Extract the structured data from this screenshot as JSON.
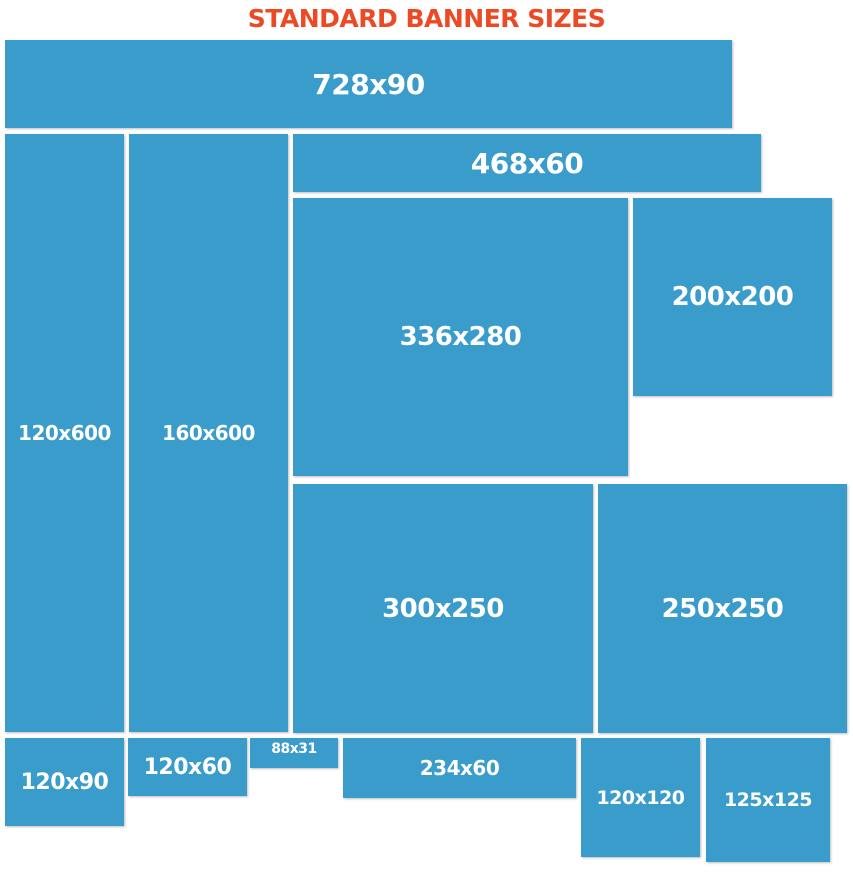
{
  "title": "STANDARD BANNER SIZES",
  "banners": [
    {
      "label": "728x90"
    },
    {
      "label": "468x60"
    },
    {
      "label": "120x600"
    },
    {
      "label": "160x600"
    },
    {
      "label": "336x280"
    },
    {
      "label": "200x200"
    },
    {
      "label": "300x250"
    },
    {
      "label": "250x250"
    },
    {
      "label": "120x90"
    },
    {
      "label": "120x60"
    },
    {
      "label": "88x31"
    },
    {
      "label": "234x60"
    },
    {
      "label": "120x120"
    },
    {
      "label": "125x125"
    }
  ],
  "colors": {
    "title": "#ec4a25",
    "banner_fill": "#3a9ccb",
    "banner_text": "#ffffff",
    "background": "#ffffff"
  }
}
